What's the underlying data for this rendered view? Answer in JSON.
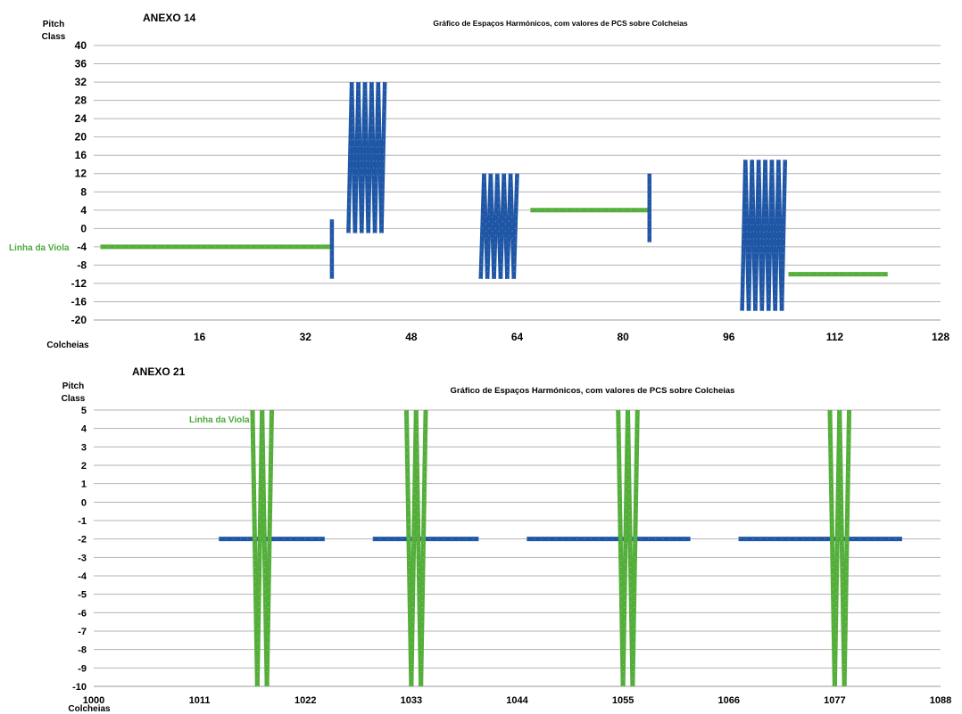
{
  "colors": {
    "blue": "#1f56a5",
    "green": "#54ae3a",
    "grid": "#b3b3b3",
    "label_green": "#4caa3c"
  },
  "chart_data": [
    {
      "type": "line",
      "annex": "ANEXO 14",
      "title": "Gráfico de Espaços Harmónicos, com valores de PCS sobre Colcheias",
      "ylabel_line1": "Pitch",
      "ylabel_line2": "Class",
      "xlabel": "Colcheias",
      "viola_label": "Linha da Viola",
      "xlim": [
        0,
        128
      ],
      "ylim": [
        -20,
        40
      ],
      "xticks": [
        "16",
        "32",
        "48",
        "64",
        "80",
        "96",
        "112",
        "128"
      ],
      "yticks": [
        "40",
        "36",
        "32",
        "28",
        "24",
        "20",
        "16",
        "12",
        "8",
        "4",
        "0",
        "-4",
        "-8",
        "-12",
        "-16",
        "-20"
      ],
      "series": [
        {
          "color": "green",
          "segments": [
            {
              "x": [
                1,
                36
              ],
              "y": [
                -4,
                -4
              ]
            },
            {
              "x": [
                66,
                84
              ],
              "y": [
                4,
                4
              ]
            },
            {
              "x": [
                105,
                120
              ],
              "y": [
                -10,
                -10
              ]
            }
          ]
        },
        {
          "color": "blue",
          "segments": [
            {
              "x": [
                36,
                36
              ],
              "y": [
                -11,
                2
              ]
            },
            {
              "x": [
                38.5,
                39
              ],
              "y": [
                -1,
                32
              ]
            },
            {
              "x": [
                39,
                39.5
              ],
              "y": [
                32,
                -1
              ]
            },
            {
              "x": [
                39.5,
                40
              ],
              "y": [
                -1,
                32
              ]
            },
            {
              "x": [
                40,
                40.5
              ],
              "y": [
                32,
                -1
              ]
            },
            {
              "x": [
                40.5,
                41
              ],
              "y": [
                -1,
                32
              ]
            },
            {
              "x": [
                41,
                41.5
              ],
              "y": [
                32,
                -1
              ]
            },
            {
              "x": [
                41.5,
                42
              ],
              "y": [
                -1,
                32
              ]
            },
            {
              "x": [
                42,
                42.5
              ],
              "y": [
                32,
                -1
              ]
            },
            {
              "x": [
                42.5,
                43
              ],
              "y": [
                -1,
                32
              ]
            },
            {
              "x": [
                43,
                43.5
              ],
              "y": [
                32,
                -1
              ]
            },
            {
              "x": [
                43.5,
                44
              ],
              "y": [
                -1,
                32
              ]
            },
            {
              "x": [
                58.5,
                59
              ],
              "y": [
                -11,
                12
              ]
            },
            {
              "x": [
                59,
                59.5
              ],
              "y": [
                12,
                -11
              ]
            },
            {
              "x": [
                59.5,
                60
              ],
              "y": [
                -11,
                12
              ]
            },
            {
              "x": [
                60,
                60.5
              ],
              "y": [
                12,
                -11
              ]
            },
            {
              "x": [
                60.5,
                61
              ],
              "y": [
                -11,
                12
              ]
            },
            {
              "x": [
                61,
                61.5
              ],
              "y": [
                12,
                -11
              ]
            },
            {
              "x": [
                61.5,
                62
              ],
              "y": [
                -11,
                12
              ]
            },
            {
              "x": [
                62,
                62.5
              ],
              "y": [
                12,
                -11
              ]
            },
            {
              "x": [
                62.5,
                63
              ],
              "y": [
                -11,
                12
              ]
            },
            {
              "x": [
                63,
                63.5
              ],
              "y": [
                12,
                -11
              ]
            },
            {
              "x": [
                63.5,
                64
              ],
              "y": [
                -11,
                12
              ]
            },
            {
              "x": [
                84,
                84
              ],
              "y": [
                -3,
                12
              ]
            },
            {
              "x": [
                98,
                98.5
              ],
              "y": [
                -18,
                15
              ]
            },
            {
              "x": [
                98.5,
                99
              ],
              "y": [
                15,
                -18
              ]
            },
            {
              "x": [
                99,
                99.5
              ],
              "y": [
                -18,
                15
              ]
            },
            {
              "x": [
                99.5,
                100
              ],
              "y": [
                15,
                -18
              ]
            },
            {
              "x": [
                100,
                100.5
              ],
              "y": [
                -18,
                15
              ]
            },
            {
              "x": [
                100.5,
                101
              ],
              "y": [
                15,
                -18
              ]
            },
            {
              "x": [
                101,
                101.5
              ],
              "y": [
                -18,
                15
              ]
            },
            {
              "x": [
                101.5,
                102
              ],
              "y": [
                15,
                -18
              ]
            },
            {
              "x": [
                102,
                102.5
              ],
              "y": [
                -18,
                15
              ]
            },
            {
              "x": [
                102.5,
                103
              ],
              "y": [
                15,
                -18
              ]
            },
            {
              "x": [
                103,
                103.5
              ],
              "y": [
                -18,
                15
              ]
            },
            {
              "x": [
                103.5,
                104
              ],
              "y": [
                15,
                -18
              ]
            },
            {
              "x": [
                104,
                104.5
              ],
              "y": [
                -18,
                15
              ]
            }
          ]
        }
      ]
    },
    {
      "type": "line",
      "annex": "ANEXO 21",
      "title": "Gráfico de Espaços Harmónicos, com valores de PCS sobre Colcheias",
      "ylabel_line1": "Pitch",
      "ylabel_line2": "Class",
      "xlabel": "Colcheias",
      "viola_label": "Linha da Viola",
      "xlim": [
        1000,
        1088
      ],
      "ylim": [
        -10,
        5
      ],
      "xticks": [
        "1000",
        "1011",
        "1022",
        "1033",
        "1044",
        "1055",
        "1066",
        "1077",
        "1088"
      ],
      "yticks": [
        "5",
        "4",
        "3",
        "2",
        "1",
        "0",
        "-1",
        "-2",
        "-3",
        "-4",
        "-5",
        "-6",
        "-7",
        "-8",
        "-9",
        "-10"
      ],
      "series": [
        {
          "color": "blue",
          "segments": [
            {
              "x": [
                1013,
                1024
              ],
              "y": [
                -2,
                -2
              ]
            },
            {
              "x": [
                1029,
                1040
              ],
              "y": [
                -2,
                -2
              ]
            },
            {
              "x": [
                1045,
                1062
              ],
              "y": [
                -2,
                -2
              ]
            },
            {
              "x": [
                1067,
                1084
              ],
              "y": [
                -2,
                -2
              ]
            }
          ]
        },
        {
          "color": "green",
          "segments": [
            {
              "x": [
                1016.5,
                1017
              ],
              "y": [
                5,
                -10
              ]
            },
            {
              "x": [
                1017,
                1017.5
              ],
              "y": [
                -10,
                5
              ]
            },
            {
              "x": [
                1017.5,
                1018
              ],
              "y": [
                5,
                -10
              ]
            },
            {
              "x": [
                1018,
                1018.5
              ],
              "y": [
                -10,
                5
              ]
            },
            {
              "x": [
                1032.5,
                1033
              ],
              "y": [
                5,
                -10
              ]
            },
            {
              "x": [
                1033,
                1033.5
              ],
              "y": [
                -10,
                5
              ]
            },
            {
              "x": [
                1033.5,
                1034
              ],
              "y": [
                5,
                -10
              ]
            },
            {
              "x": [
                1034,
                1034.5
              ],
              "y": [
                -10,
                5
              ]
            },
            {
              "x": [
                1054.5,
                1055
              ],
              "y": [
                5,
                -10
              ]
            },
            {
              "x": [
                1055,
                1055.5
              ],
              "y": [
                -10,
                5
              ]
            },
            {
              "x": [
                1055.5,
                1056
              ],
              "y": [
                5,
                -10
              ]
            },
            {
              "x": [
                1056,
                1056.5
              ],
              "y": [
                -10,
                5
              ]
            },
            {
              "x": [
                1076.5,
                1077
              ],
              "y": [
                5,
                -10
              ]
            },
            {
              "x": [
                1077,
                1077.5
              ],
              "y": [
                -10,
                5
              ]
            },
            {
              "x": [
                1077.5,
                1078
              ],
              "y": [
                5,
                -10
              ]
            },
            {
              "x": [
                1078,
                1078.5
              ],
              "y": [
                -10,
                5
              ]
            }
          ]
        }
      ]
    }
  ]
}
